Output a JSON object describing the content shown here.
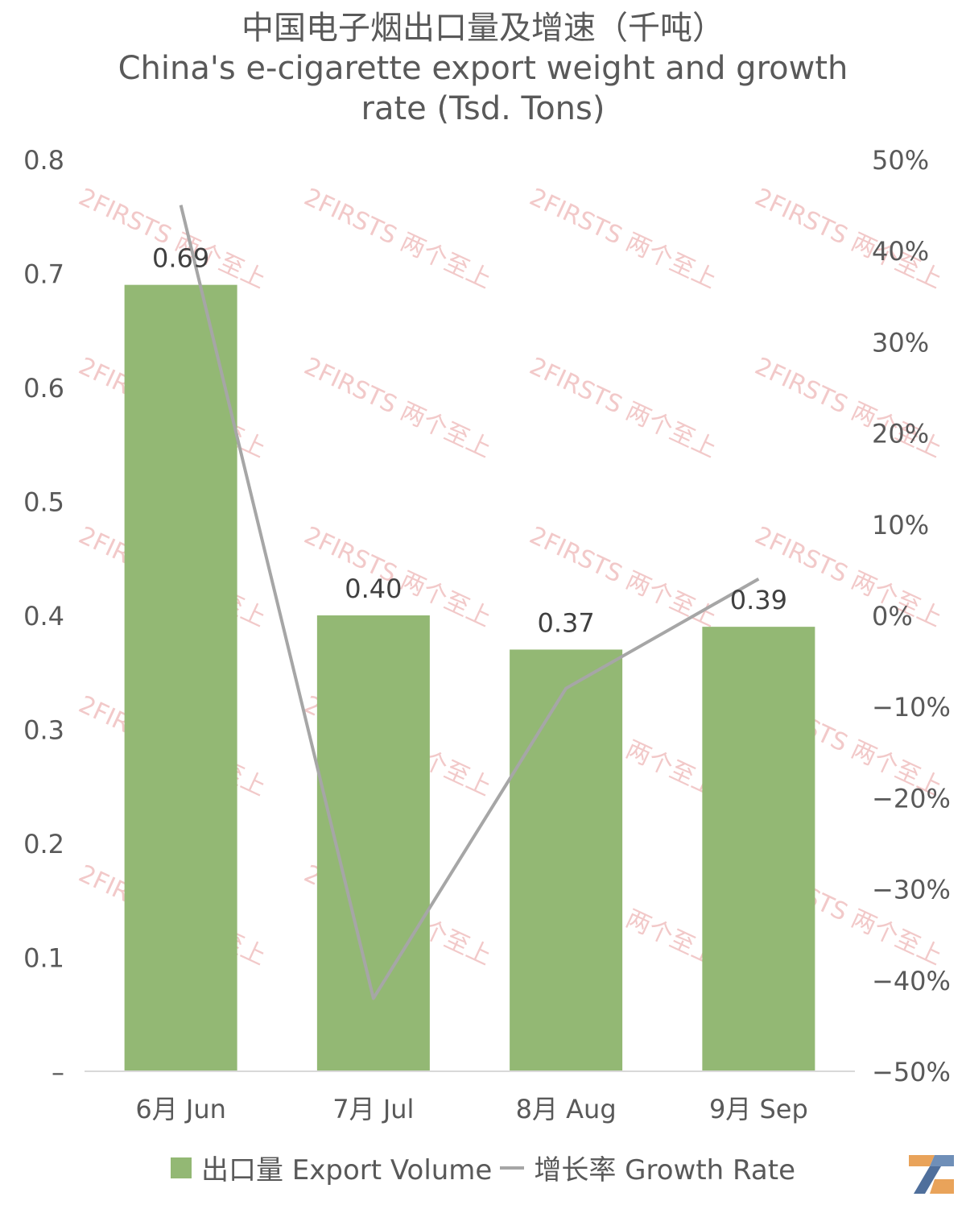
{
  "title_lines": [
    "中国电子烟出口量及增速（千吨）",
    "China's e-cigarette export weight and growth",
    "rate (Tsd. Tons)"
  ],
  "watermark_text": "2FIRSTS 两个至上",
  "legend": {
    "bar_label": "出口量 Export Volume",
    "line_label": "增长率 Growth Rate"
  },
  "colors": {
    "bar": "#93b874",
    "line": "#a6a6a6",
    "text": "#595959",
    "watermark": "#f2c9c9"
  },
  "chart_data": {
    "type": "bar",
    "categories": [
      "6月 Jun",
      "7月 Jul",
      "8月 Aug",
      "9月 Sep"
    ],
    "series": [
      {
        "name": "出口量 Export Volume",
        "type": "bar",
        "axis": "left",
        "values": [
          0.69,
          0.4,
          0.37,
          0.39
        ],
        "labels": [
          "0.69",
          "0.40",
          "0.37",
          "0.39"
        ]
      },
      {
        "name": "增长率 Growth Rate",
        "type": "line",
        "axis": "right",
        "values": [
          0.45,
          -0.42,
          -0.08,
          0.04
        ]
      }
    ],
    "y_left": {
      "ylim": [
        0,
        0.8
      ],
      "ticks": [
        "–",
        "0.1",
        "0.2",
        "0.3",
        "0.4",
        "0.5",
        "0.6",
        "0.7",
        "0.8"
      ]
    },
    "y_right": {
      "ylim": [
        -0.5,
        0.5
      ],
      "ticks": [
        "−50%",
        "−40%",
        "−30%",
        "−20%",
        "−10%",
        "0%",
        "10%",
        "20%",
        "30%",
        "40%",
        "50%"
      ]
    },
    "grid": false,
    "legend_position": "bottom"
  }
}
